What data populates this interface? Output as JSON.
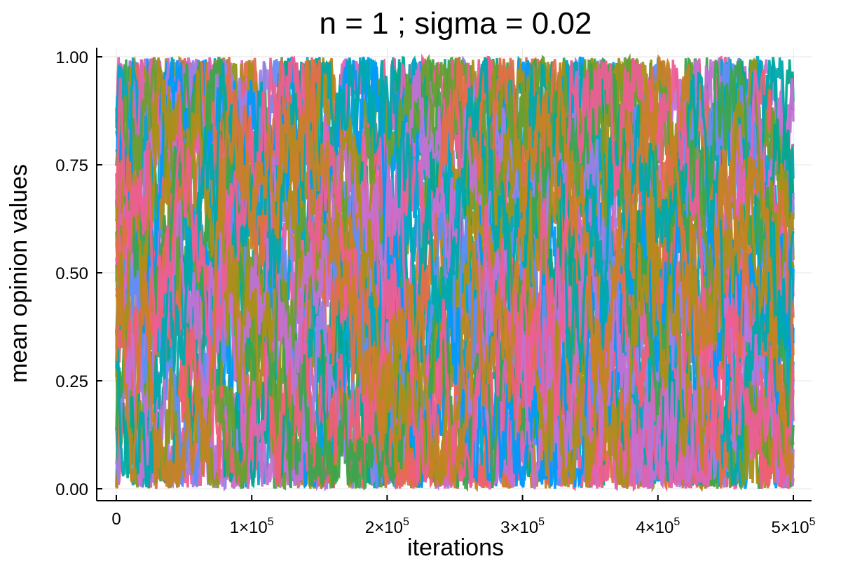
{
  "chart_data": {
    "type": "line",
    "title": "n = 1 ; sigma = 0.02",
    "xlabel": "iterations",
    "ylabel": "mean opinion values",
    "xlim": [
      0,
      500000
    ],
    "ylim": [
      0,
      1
    ],
    "x_ticks": [
      {
        "value": 0,
        "label": "0",
        "exp": ""
      },
      {
        "value": 100000,
        "label": "1×10",
        "exp": "5"
      },
      {
        "value": 200000,
        "label": "2×10",
        "exp": "5"
      },
      {
        "value": 300000,
        "label": "3×10",
        "exp": "5"
      },
      {
        "value": 400000,
        "label": "4×10",
        "exp": "5"
      },
      {
        "value": 500000,
        "label": "5×10",
        "exp": "5"
      }
    ],
    "y_ticks": [
      {
        "value": 0.0,
        "label": "0.00"
      },
      {
        "value": 0.25,
        "label": "0.25"
      },
      {
        "value": 0.5,
        "label": "0.50"
      },
      {
        "value": 0.75,
        "label": "0.75"
      },
      {
        "value": 1.0,
        "label": "1.00"
      }
    ],
    "grid": true,
    "legend": "none",
    "series_count": 40,
    "series_value_range": [
      0,
      1
    ],
    "palette": [
      "#009af9",
      "#e26f46",
      "#3da44d",
      "#c271d2",
      "#ac8e18",
      "#00a9ad",
      "#ed5e93",
      "#c68225",
      "#00a98d",
      "#8e971d",
      "#00a9cd",
      "#9b7fe8",
      "#618df6",
      "#f05f73",
      "#dd64b5",
      "#6b9e32"
    ]
  }
}
